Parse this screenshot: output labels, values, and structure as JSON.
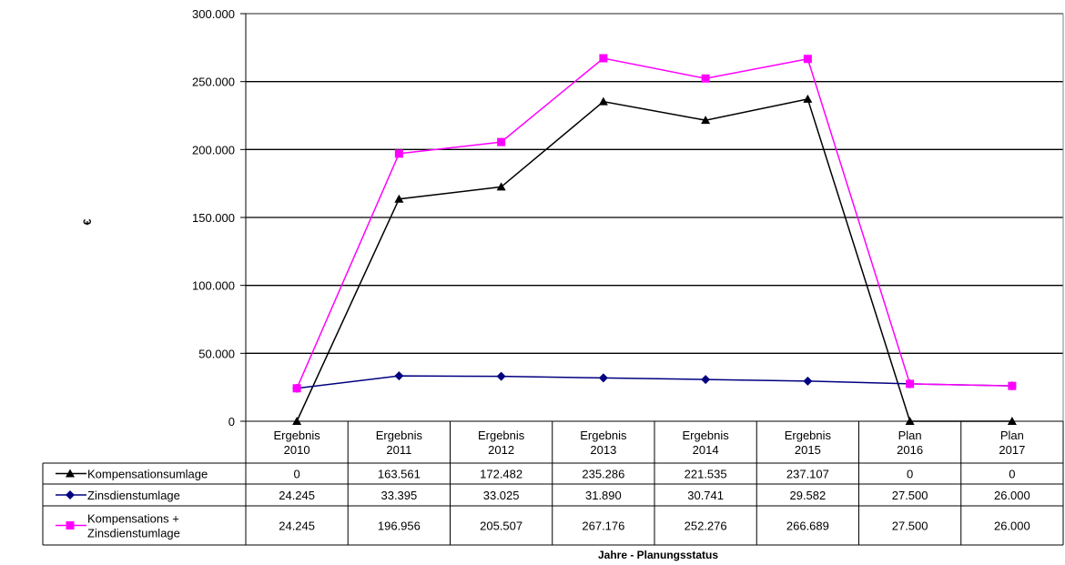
{
  "chart_data": {
    "type": "line",
    "xlabel": "Jahre - Planungsstatus",
    "ylabel": "€",
    "ylim": [
      0,
      300000
    ],
    "yticks": [
      {
        "value": 0,
        "label": "0"
      },
      {
        "value": 50000,
        "label": "50.000"
      },
      {
        "value": 100000,
        "label": "100.000"
      },
      {
        "value": 150000,
        "label": "150.000"
      },
      {
        "value": 200000,
        "label": "200.000"
      },
      {
        "value": 250000,
        "label": "250.000"
      },
      {
        "value": 300000,
        "label": "300.000"
      }
    ],
    "grid": true,
    "legend": "data-table-left",
    "categories": [
      [
        "Ergebnis",
        "2010"
      ],
      [
        "Ergebnis",
        "2011"
      ],
      [
        "Ergebnis",
        "2012"
      ],
      [
        "Ergebnis",
        "2013"
      ],
      [
        "Ergebnis",
        "2014"
      ],
      [
        "Ergebnis",
        "2015"
      ],
      [
        "Plan",
        "2016"
      ],
      [
        "Plan",
        "2017"
      ]
    ],
    "series": [
      {
        "name": "Kompensationsumlage",
        "name_lines": [
          "Kompensationsumlage"
        ],
        "color": "#000000",
        "marker": "triangle",
        "values": [
          0,
          163561,
          172482,
          235286,
          221535,
          237107,
          0,
          0
        ],
        "labels": [
          "0",
          "163.561",
          "172.482",
          "235.286",
          "221.535",
          "237.107",
          "0",
          "0"
        ]
      },
      {
        "name": "Zinsdienstumlage",
        "name_lines": [
          "Zinsdienstumlage"
        ],
        "color": "#000080",
        "marker": "diamond",
        "values": [
          24245,
          33395,
          33025,
          31890,
          30741,
          29582,
          27500,
          26000
        ],
        "labels": [
          "24.245",
          "33.395",
          "33.025",
          "31.890",
          "30.741",
          "29.582",
          "27.500",
          "26.000"
        ]
      },
      {
        "name": "Kompensations + Zinsdienstumlage",
        "name_lines": [
          "Kompensations +",
          "Zinsdienstumlage"
        ],
        "color": "#FF00FF",
        "marker": "square",
        "values": [
          24245,
          196956,
          205507,
          267176,
          252276,
          266689,
          27500,
          26000
        ],
        "labels": [
          "24.245",
          "196.956",
          "205.507",
          "267.176",
          "252.276",
          "266.689",
          "27.500",
          "26.000"
        ]
      }
    ]
  }
}
